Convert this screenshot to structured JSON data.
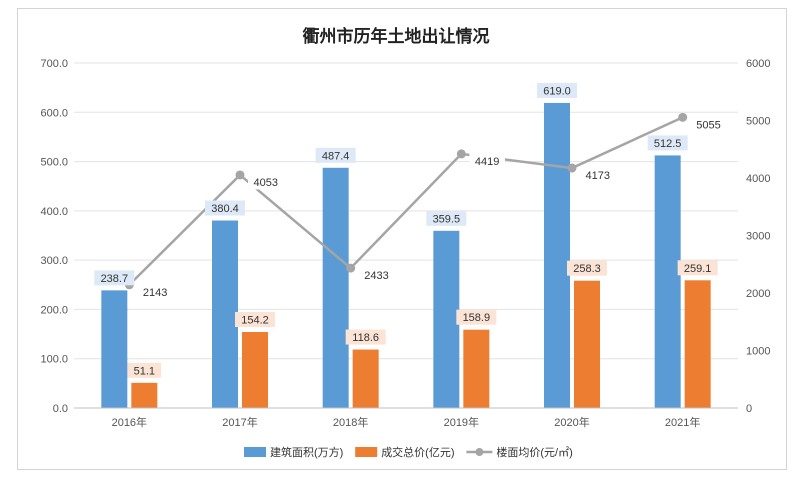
{
  "chart_data": {
    "type": "bar",
    "title": "衢州市历年土地出让情况",
    "categories": [
      "2016年",
      "2017年",
      "2018年",
      "2019年",
      "2020年",
      "2021年"
    ],
    "series": [
      {
        "name": "建筑面积(万方)",
        "type": "bar",
        "axis": "left",
        "color": "#5b9bd5",
        "label_bg": "#dde9f6",
        "values": [
          238.7,
          380.4,
          487.4,
          359.5,
          619.0,
          512.5
        ],
        "labels": [
          "238.7",
          "380.4",
          "487.4",
          "359.5",
          "619.0",
          "512.5"
        ]
      },
      {
        "name": "成交总价(亿元)",
        "type": "bar",
        "axis": "left",
        "color": "#ed7d31",
        "label_bg": "#fbe3d5",
        "values": [
          51.1,
          154.2,
          118.6,
          158.9,
          258.3,
          259.1
        ],
        "labels": [
          "51.1",
          "154.2",
          "118.6",
          "158.9",
          "258.3",
          "259.1"
        ]
      },
      {
        "name": "楼面均价(元/㎡)",
        "type": "line",
        "axis": "right",
        "color": "#a5a5a5",
        "values": [
          2143,
          4053,
          2433,
          4419,
          4173,
          5055
        ],
        "labels": [
          "2143",
          "4053",
          "2433",
          "4419",
          "4173",
          "5055"
        ]
      }
    ],
    "y_left": {
      "range": [
        0,
        700
      ],
      "ticks": [
        "0.0",
        "100.0",
        "200.0",
        "300.0",
        "400.0",
        "500.0",
        "600.0",
        "700.0"
      ]
    },
    "y_right": {
      "range": [
        0,
        6000
      ],
      "ticks": [
        "0",
        "1000",
        "2000",
        "3000",
        "4000",
        "5000",
        "6000"
      ]
    },
    "grid": true,
    "legend_position": "bottom"
  }
}
